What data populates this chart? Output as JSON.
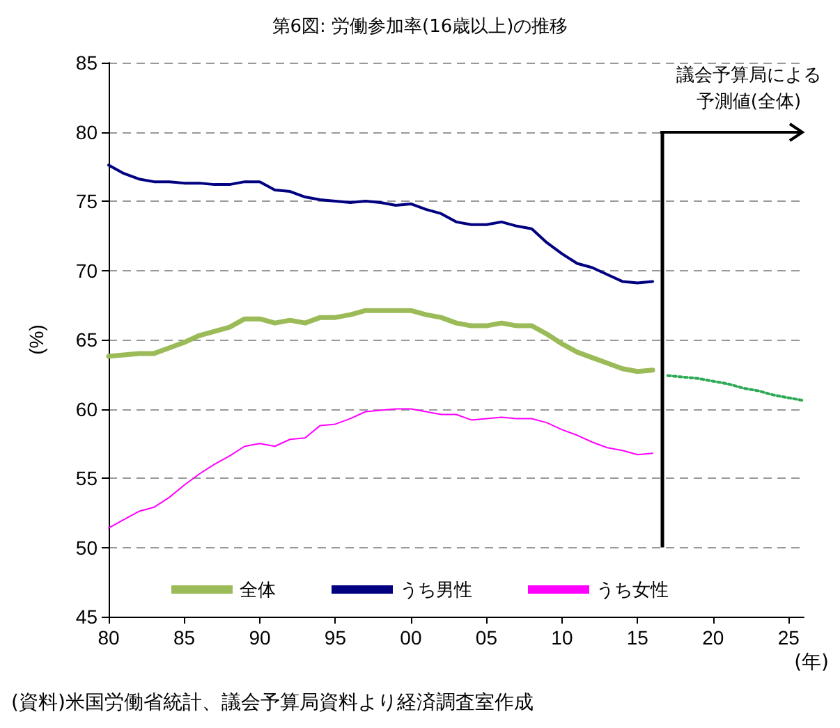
{
  "chart_data": {
    "type": "line",
    "title": "第6図: 労働参加率(16歳以上)の推移",
    "xlabel": "(年)",
    "ylabel": "(%)",
    "x": [
      1980,
      1981,
      1982,
      1983,
      1984,
      1985,
      1986,
      1987,
      1988,
      1989,
      1990,
      1991,
      1992,
      1993,
      1994,
      1995,
      1996,
      1997,
      1998,
      1999,
      2000,
      2001,
      2002,
      2003,
      2004,
      2005,
      2006,
      2007,
      2008,
      2009,
      2010,
      2011,
      2012,
      2013,
      2014,
      2015,
      2016
    ],
    "series": [
      {
        "name": "全体",
        "color": "#9bbb59",
        "values": [
          63.8,
          63.9,
          64.0,
          64.0,
          64.4,
          64.8,
          65.3,
          65.6,
          65.9,
          66.5,
          66.5,
          66.2,
          66.4,
          66.2,
          66.6,
          66.6,
          66.8,
          67.1,
          67.1,
          67.1,
          67.1,
          66.8,
          66.6,
          66.2,
          66.0,
          66.0,
          66.2,
          66.0,
          66.0,
          65.4,
          64.7,
          64.1,
          63.7,
          63.3,
          62.9,
          62.7,
          62.8
        ]
      },
      {
        "name": "うち男性",
        "color": "#000080",
        "values": [
          77.6,
          77.0,
          76.6,
          76.4,
          76.4,
          76.3,
          76.3,
          76.2,
          76.2,
          76.4,
          76.4,
          75.8,
          75.7,
          75.3,
          75.1,
          75.0,
          74.9,
          75.0,
          74.9,
          74.7,
          74.8,
          74.4,
          74.1,
          73.5,
          73.3,
          73.3,
          73.5,
          73.2,
          73.0,
          72.0,
          71.2,
          70.5,
          70.2,
          69.7,
          69.2,
          69.1,
          69.2
        ]
      },
      {
        "name": "うち女性",
        "color": "#ff00ff",
        "values": [
          51.4,
          52.0,
          52.6,
          52.9,
          53.6,
          54.5,
          55.3,
          56.0,
          56.6,
          57.3,
          57.5,
          57.3,
          57.8,
          57.9,
          58.8,
          58.9,
          59.3,
          59.8,
          59.9,
          60.0,
          60.0,
          59.8,
          59.6,
          59.6,
          59.2,
          59.3,
          59.4,
          59.3,
          59.3,
          59.0,
          58.5,
          58.1,
          57.6,
          57.2,
          57.0,
          56.7,
          56.8
        ]
      },
      {
        "color": "#2eaa57",
        "line_style": "dotted",
        "x": [
          2017,
          2018,
          2019,
          2020,
          2021,
          2022,
          2023,
          2024,
          2025,
          2026
        ],
        "values": [
          62.4,
          62.3,
          62.2,
          62.0,
          61.8,
          61.5,
          61.3,
          61.0,
          60.8,
          60.6
        ]
      }
    ],
    "xlim": [
      1980,
      2026
    ],
    "xticks": [
      {
        "value": 1980,
        "label": "80"
      },
      {
        "value": 1985,
        "label": "85"
      },
      {
        "value": 1990,
        "label": "90"
      },
      {
        "value": 1995,
        "label": "95"
      },
      {
        "value": 2000,
        "label": "00"
      },
      {
        "value": 2005,
        "label": "05"
      },
      {
        "value": 2010,
        "label": "10"
      },
      {
        "value": 2015,
        "label": "15"
      },
      {
        "value": 2020,
        "label": "20"
      },
      {
        "value": 2025,
        "label": "25"
      }
    ],
    "ylim": [
      45,
      85
    ],
    "yticks": [
      45,
      50,
      55,
      60,
      65,
      70,
      75,
      80,
      85
    ],
    "grid": "y",
    "legend": "bottom",
    "marker": "none",
    "line_style": "solid",
    "ref_lines": [
      {
        "axis": "x",
        "value": 2016.6,
        "label": "議会予算局による予測値(全体)",
        "color": "#000000"
      }
    ],
    "annotations": [
      "(資料)米国労働省統計、議会予算局資料より経済調査室作成"
    ]
  }
}
